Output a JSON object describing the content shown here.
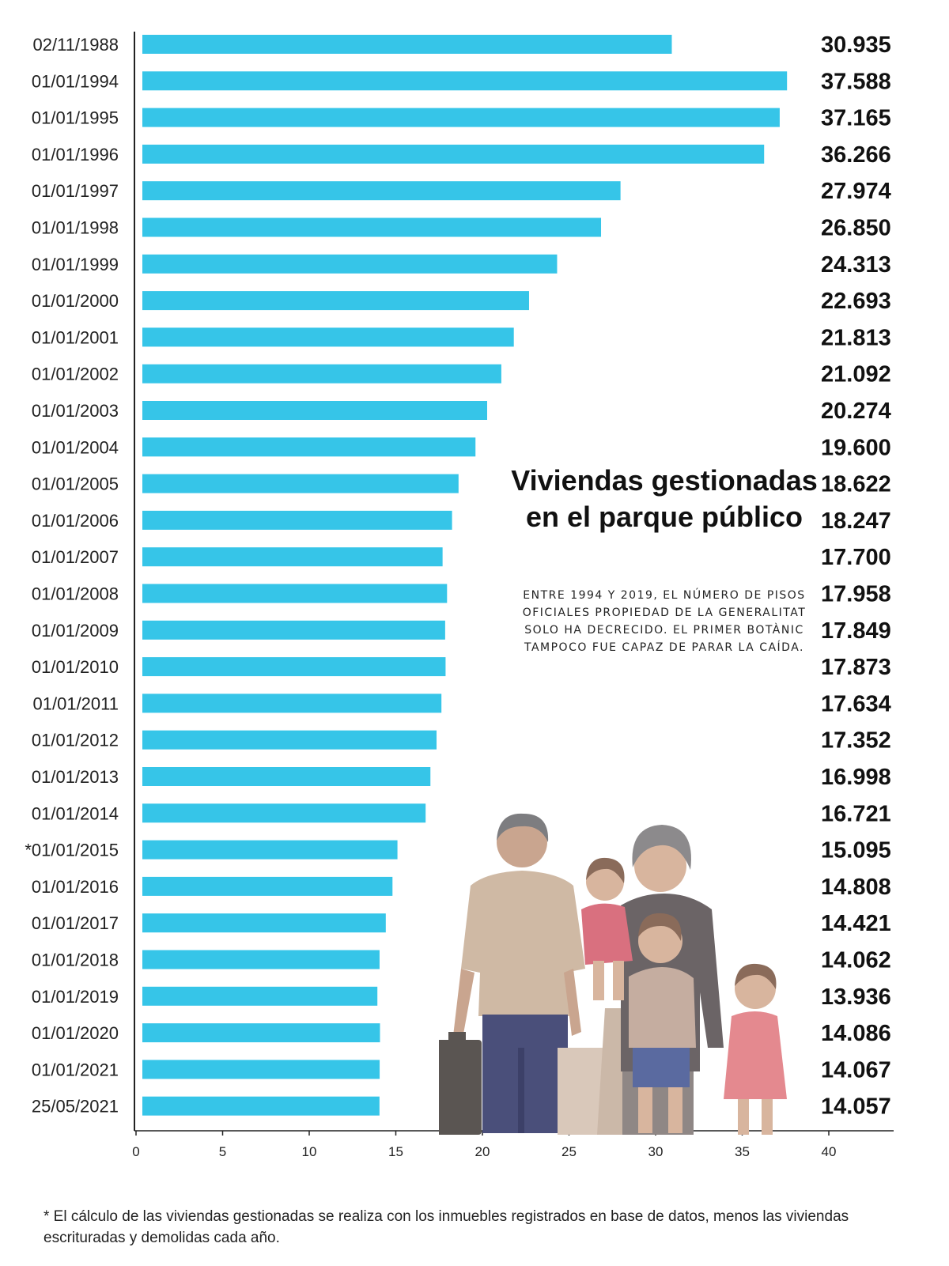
{
  "chart_data": {
    "type": "bar",
    "orientation": "horizontal",
    "title": "Viviendas gestionadas en el parque público",
    "subtitle": "Entre 1994 y 2019, el número de pisos oficiales propiedad de la Generalitat solo ha decrecido. El primer Botànic tampoco fue capaz de parar la caída.",
    "categories": [
      "02/11/1988",
      "01/01/1994",
      "01/01/1995",
      "01/01/1996",
      "01/01/1997",
      "01/01/1998",
      "01/01/1999",
      "01/01/2000",
      "01/01/2001",
      "01/01/2002",
      "01/01/2003",
      "01/01/2004",
      "01/01/2005",
      "01/01/2006",
      "01/01/2007",
      "01/01/2008",
      "01/01/2009",
      "01/01/2010",
      "01/01/2011",
      "01/01/2012",
      "01/01/2013",
      "01/01/2014",
      "*01/01/2015",
      "01/01/2016",
      "01/01/2017",
      "01/01/2018",
      "01/01/2019",
      "01/01/2020",
      "01/01/2021",
      "25/05/2021"
    ],
    "values": [
      30935,
      37588,
      37165,
      36266,
      27974,
      26850,
      24313,
      22693,
      21813,
      21092,
      20274,
      19600,
      18622,
      18247,
      17700,
      17958,
      17849,
      17873,
      17634,
      17352,
      16998,
      16721,
      15095,
      14808,
      14421,
      14062,
      13936,
      14086,
      14067,
      14057
    ],
    "value_labels": [
      "30.935",
      "37.588",
      "37.165",
      "36.266",
      "27.974",
      "26.850",
      "24.313",
      "22.693",
      "21.813",
      "21.092",
      "20.274",
      "19.600",
      "18.622",
      "18.247",
      "17.700",
      "17.958",
      "17.849",
      "17.873",
      "17.634",
      "17.352",
      "16.998",
      "16.721",
      "15.095",
      "14.808",
      "14.421",
      "14.062",
      "13.936",
      "14.086",
      "14.067",
      "14.057"
    ],
    "xlim": [
      0,
      40
    ],
    "x_ticks": [
      "0",
      "5",
      "10",
      "15",
      "20",
      "25",
      "30",
      "35",
      "40"
    ],
    "x_unit_scale": 1000,
    "grid": false,
    "bar_color": "#36c5e8",
    "footnote": "* El cálculo de las viviendas gestionadas se realiza con los inmuebles registrados en base de datos, menos las viviendas escrituradas y demolidas cada año."
  },
  "illustration": {
    "icon": "family-illustration-icon"
  }
}
